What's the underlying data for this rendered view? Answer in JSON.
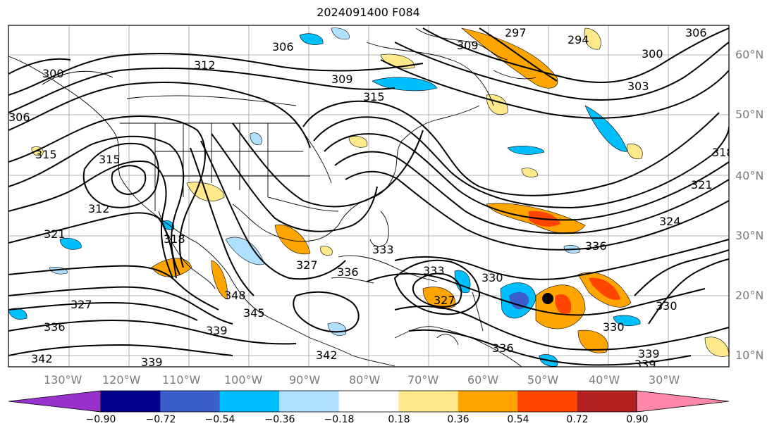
{
  "title": "2024091400 F084",
  "map": {
    "lat_labels": [
      "10°N",
      "20°N",
      "30°N",
      "40°N",
      "50°N",
      "60°N"
    ],
    "lon_labels": [
      "130°W",
      "120°W",
      "110°W",
      "100°W",
      "90°W",
      "80°W",
      "70°W",
      "60°W",
      "50°W",
      "40°W",
      "30°W"
    ],
    "contour_labels": [
      "306",
      "312",
      "309",
      "315",
      "297",
      "294",
      "309",
      "306",
      "300",
      "303",
      "318",
      "321",
      "324",
      "336",
      "330",
      "330",
      "339",
      "339",
      "336",
      "333",
      "327",
      "330",
      "327",
      "336",
      "333",
      "348",
      "345",
      "339",
      "342",
      "339",
      "342",
      "327",
      "336",
      "321",
      "318",
      "312",
      "315",
      "315",
      "306",
      "300"
    ],
    "grid": true,
    "marker": "tropical-cyclone-position"
  },
  "colorbar": {
    "ticks": [
      "−0.90",
      "−0.72",
      "−0.54",
      "−0.36",
      "−0.18",
      "0.18",
      "0.36",
      "0.54",
      "0.72",
      "0.90"
    ],
    "colors": [
      "#9932cc",
      "#00008b",
      "#3a5fcd",
      "#00bfff",
      "#b0e0ff",
      "#ffffff",
      "#ffe98a",
      "#ffa500",
      "#ff4500",
      "#b22222",
      "#ff88aa"
    ]
  }
}
